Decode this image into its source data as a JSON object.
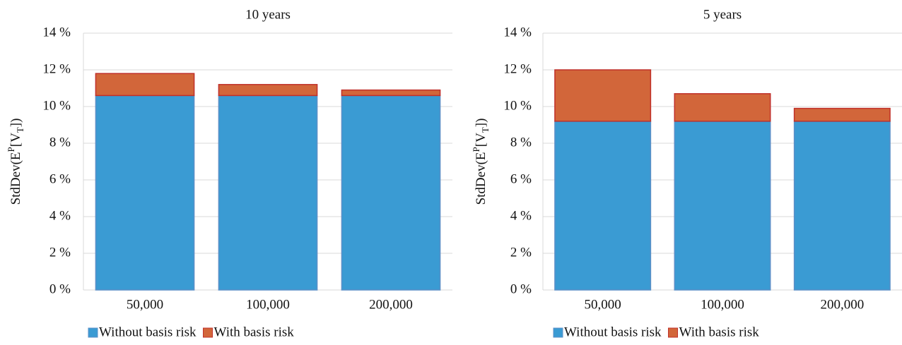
{
  "chart_data": [
    {
      "type": "stacked_bar",
      "title": "10 years",
      "y_label": [
        "StdDev(E",
        "P",
        "[V",
        "T",
        "])"
      ],
      "categories": [
        "50,000",
        "100,000",
        "200,000"
      ],
      "series": [
        {
          "name": "Without basis risk",
          "color": "#3a9bd3",
          "values": [
            10.6,
            10.6,
            10.6
          ]
        },
        {
          "name": "With basis risk",
          "color": "#d2663a",
          "values": [
            1.2,
            0.6,
            0.3
          ]
        }
      ],
      "ylim": [
        0,
        14
      ],
      "yticks": [
        {
          "value": 0,
          "label": "0 %"
        },
        {
          "value": 2,
          "label": "2 %"
        },
        {
          "value": 4,
          "label": "4 %"
        },
        {
          "value": 6,
          "label": "6 %"
        },
        {
          "value": 8,
          "label": "8 %"
        },
        {
          "value": 10,
          "label": "10 %"
        },
        {
          "value": 12,
          "label": "12 %"
        },
        {
          "value": 14,
          "label": "14 %"
        }
      ],
      "grid": true,
      "legend": "bottom-left"
    },
    {
      "type": "stacked_bar",
      "title": "5 years",
      "y_label": [
        "StdDev(E",
        "P",
        "[V",
        "T",
        "])"
      ],
      "categories": [
        "50,000",
        "100,000",
        "200,000"
      ],
      "series": [
        {
          "name": "Without basis risk",
          "color": "#3a9bd3",
          "values": [
            9.2,
            9.2,
            9.2
          ]
        },
        {
          "name": "With basis risk",
          "color": "#d2663a",
          "values": [
            2.8,
            1.5,
            0.7
          ]
        }
      ],
      "ylim": [
        0,
        14
      ],
      "yticks": [
        {
          "value": 0,
          "label": "0 %"
        },
        {
          "value": 2,
          "label": "2 %"
        },
        {
          "value": 4,
          "label": "4 %"
        },
        {
          "value": 6,
          "label": "6 %"
        },
        {
          "value": 8,
          "label": "8 %"
        },
        {
          "value": 10,
          "label": "10 %"
        },
        {
          "value": 12,
          "label": "12 %"
        },
        {
          "value": 14,
          "label": "14 %"
        }
      ],
      "grid": true,
      "legend": "bottom-left"
    }
  ]
}
